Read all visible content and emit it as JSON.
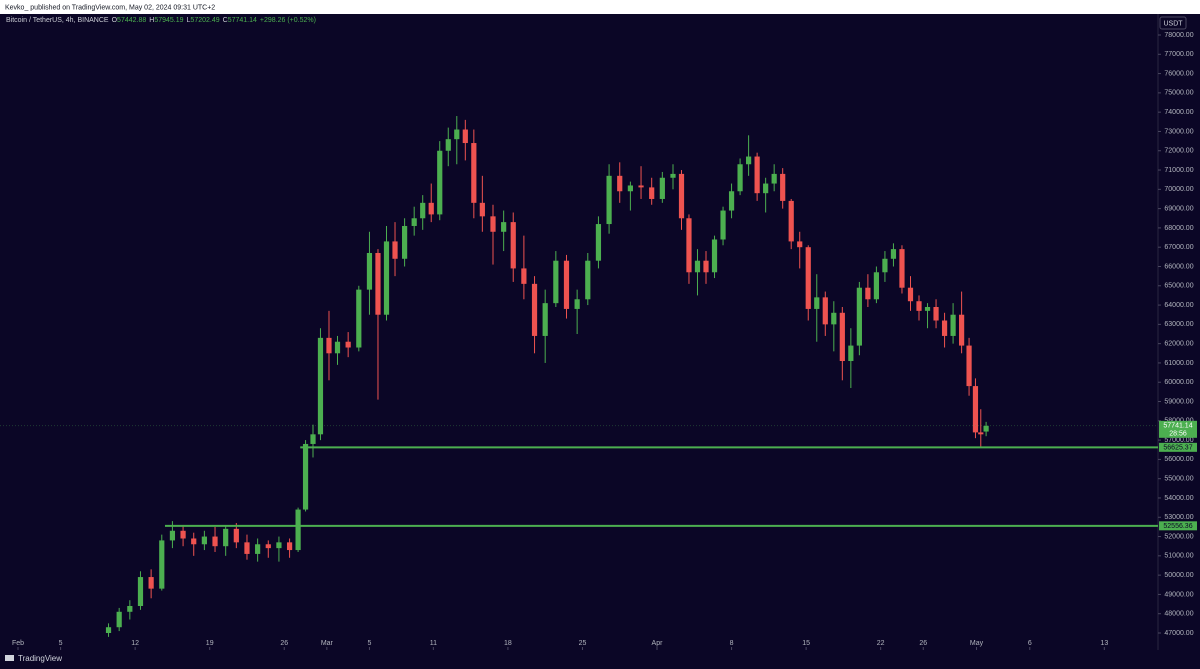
{
  "chart_data": {
    "type": "candlestick",
    "published_by": "Kevko_ published on TradingView.com, May 02, 2024 09:31 UTC+2",
    "symbol": "Bitcoin / TetherUS, 4h, BINANCE",
    "ohlc_labels": [
      "O",
      "H",
      "L",
      "C"
    ],
    "change_label": "+298.26 (+0.52%)",
    "currency": "USDT",
    "countdown": "28:56",
    "brand": "TradingView",
    "up_color": "#4caf50",
    "down_color": "#ef5350",
    "level_color": "#4caf50",
    "grid": false,
    "xlim": [
      -1.69,
      107.04
    ],
    "ylim": [
      46119,
      79089
    ],
    "xticks": [
      {
        "value": 0,
        "label": "Feb"
      },
      {
        "value": 4,
        "label": "5"
      },
      {
        "value": 11,
        "label": "12"
      },
      {
        "value": 18,
        "label": "19"
      },
      {
        "value": 25,
        "label": "26"
      },
      {
        "value": 29,
        "label": "Mar"
      },
      {
        "value": 33,
        "label": "5"
      },
      {
        "value": 39,
        "label": "11"
      },
      {
        "value": 46,
        "label": "18"
      },
      {
        "value": 53,
        "label": "25"
      },
      {
        "value": 60,
        "label": "Apr"
      },
      {
        "value": 67,
        "label": "8"
      },
      {
        "value": 74,
        "label": "15"
      },
      {
        "value": 81,
        "label": "22"
      },
      {
        "value": 85,
        "label": "26"
      },
      {
        "value": 90,
        "label": "May"
      },
      {
        "value": 95,
        "label": "6"
      },
      {
        "value": 102,
        "label": "13"
      }
    ],
    "yticks": [
      {
        "value": 47000,
        "label": "47000.00"
      },
      {
        "value": 48000,
        "label": "48000.00"
      },
      {
        "value": 49000,
        "label": "49000.00"
      },
      {
        "value": 50000,
        "label": "50000.00"
      },
      {
        "value": 51000,
        "label": "51000.00"
      },
      {
        "value": 52000,
        "label": "52000.00"
      },
      {
        "value": 53000,
        "label": "53000.00"
      },
      {
        "value": 54000,
        "label": "54000.00"
      },
      {
        "value": 55000,
        "label": "55000.00"
      },
      {
        "value": 56000,
        "label": "56000.00"
      },
      {
        "value": 57000,
        "label": "57000.00"
      },
      {
        "value": 58000,
        "label": "58000.00"
      },
      {
        "value": 59000,
        "label": "59000.00"
      },
      {
        "value": 60000,
        "label": "60000.00"
      },
      {
        "value": 61000,
        "label": "61000.00"
      },
      {
        "value": 62000,
        "label": "62000.00"
      },
      {
        "value": 63000,
        "label": "63000.00"
      },
      {
        "value": 64000,
        "label": "64000.00"
      },
      {
        "value": 65000,
        "label": "65000.00"
      },
      {
        "value": 66000,
        "label": "66000.00"
      },
      {
        "value": 67000,
        "label": "67000.00"
      },
      {
        "value": 68000,
        "label": "68000.00"
      },
      {
        "value": 69000,
        "label": "69000.00"
      },
      {
        "value": 70000,
        "label": "70000.00"
      },
      {
        "value": 71000,
        "label": "71000.00"
      },
      {
        "value": 72000,
        "label": "72000.00"
      },
      {
        "value": 73000,
        "label": "73000.00"
      },
      {
        "value": 74000,
        "label": "74000.00"
      },
      {
        "value": 75000,
        "label": "75000.00"
      },
      {
        "value": 76000,
        "label": "76000.00"
      },
      {
        "value": 77000,
        "label": "77000.00"
      },
      {
        "value": 78000,
        "label": "78000.00"
      }
    ],
    "x": [
      8.5,
      9.5,
      10.5,
      11.5,
      12.5,
      13.5,
      14.5,
      15.5,
      16.5,
      17.5,
      18.5,
      19.5,
      20.5,
      21.5,
      22.5,
      23.5,
      24.5,
      25.5,
      26.3,
      27.0,
      27.7,
      28.4,
      29.2,
      30.0,
      31.0,
      32.0,
      33.0,
      33.8,
      34.6,
      35.4,
      36.3,
      37.2,
      38.0,
      38.8,
      39.6,
      40.4,
      41.2,
      42.0,
      42.8,
      43.6,
      44.6,
      45.6,
      46.5,
      47.5,
      48.5,
      49.5,
      50.5,
      51.5,
      52.5,
      53.5,
      54.5,
      55.5,
      56.5,
      57.5,
      58.5,
      59.5,
      60.5,
      61.5,
      62.3,
      63.0,
      63.8,
      64.6,
      65.4,
      66.2,
      67.0,
      67.8,
      68.6,
      69.4,
      70.2,
      71.0,
      71.8,
      72.6,
      73.4,
      74.2,
      75.0,
      75.8,
      76.6,
      77.4,
      78.2,
      79.0,
      79.8,
      80.6,
      81.4,
      82.2,
      83.0,
      83.8,
      84.6,
      85.4,
      86.2,
      87.0,
      87.8,
      88.6,
      89.3,
      89.9,
      90.4,
      90.9
    ],
    "open": [
      47000,
      47300,
      48100,
      48400,
      49900,
      49300,
      51800,
      52300,
      51900,
      51600,
      52000,
      51500,
      52400,
      51700,
      51100,
      51600,
      51400,
      51700,
      51300,
      53400,
      56800,
      57300,
      62300,
      61500,
      62100,
      61800,
      64800,
      66700,
      63500,
      67300,
      66400,
      68100,
      68500,
      69300,
      68700,
      72000,
      72600,
      73100,
      72400,
      69300,
      68600,
      67800,
      68300,
      65900,
      65100,
      62400,
      64100,
      66300,
      63800,
      64300,
      66300,
      68200,
      70700,
      69900,
      70200,
      70100,
      69500,
      70600,
      70800,
      68500,
      65700,
      66300,
      65700,
      67400,
      68900,
      69900,
      71300,
      71700,
      69800,
      70300,
      70800,
      69400,
      67300,
      67000,
      63800,
      64400,
      63000,
      63600,
      61100,
      61900,
      64900,
      64300,
      65700,
      66400,
      66900,
      64900,
      64200,
      63700,
      63900,
      63200,
      62400,
      63500,
      61900,
      59800,
      57400,
      57442.88
    ],
    "high": [
      47500,
      48300,
      48700,
      50200,
      50300,
      52100,
      52800,
      52600,
      52200,
      52300,
      52500,
      52600,
      52700,
      52100,
      51900,
      51800,
      52000,
      51900,
      53500,
      57000,
      57800,
      62800,
      63700,
      62400,
      62600,
      65000,
      67800,
      66900,
      68100,
      68300,
      68500,
      69100,
      69700,
      70300,
      72500,
      73200,
      73800,
      73600,
      73100,
      70700,
      69200,
      68900,
      68800,
      67600,
      65500,
      64800,
      66800,
      66600,
      64800,
      66700,
      68600,
      71300,
      71400,
      70400,
      71200,
      70600,
      70900,
      71300,
      71000,
      68700,
      66900,
      66800,
      67600,
      69100,
      70300,
      71600,
      72800,
      71900,
      70600,
      71300,
      71100,
      69500,
      67800,
      67100,
      65600,
      64700,
      64200,
      63900,
      62800,
      65200,
      65600,
      66000,
      66800,
      67200,
      67100,
      65500,
      64500,
      64100,
      64300,
      63600,
      64100,
      64700,
      62300,
      60200,
      58600,
      57945.19
    ],
    "low": [
      46800,
      47100,
      47700,
      48200,
      48800,
      49200,
      51400,
      51500,
      51000,
      51300,
      51200,
      51000,
      51400,
      50800,
      50700,
      50900,
      50700,
      50900,
      51200,
      53300,
      56100,
      57000,
      60100,
      60900,
      61300,
      61600,
      63500,
      59100,
      63200,
      65500,
      66000,
      67600,
      67900,
      68300,
      68400,
      71200,
      71300,
      71500,
      68500,
      67800,
      66100,
      66800,
      65200,
      64300,
      61500,
      61000,
      63900,
      63300,
      62500,
      64000,
      65900,
      67700,
      69300,
      68900,
      69500,
      69200,
      69300,
      70000,
      67900,
      65100,
      64500,
      65100,
      65400,
      67100,
      68500,
      69700,
      70700,
      69400,
      68800,
      69900,
      69000,
      66900,
      65900,
      63200,
      62100,
      62400,
      61600,
      60100,
      59700,
      61400,
      63900,
      64100,
      65200,
      66000,
      64600,
      63700,
      63200,
      62800,
      62800,
      61800,
      62000,
      61500,
      59300,
      57100,
      56600,
      57202.49
    ],
    "close": [
      47300,
      48100,
      48400,
      49900,
      49300,
      51800,
      52300,
      51900,
      51600,
      52000,
      51500,
      52400,
      51700,
      51100,
      51600,
      51400,
      51700,
      51300,
      53400,
      56800,
      57300,
      62300,
      61500,
      62100,
      61800,
      64800,
      66700,
      63500,
      67300,
      66400,
      68100,
      68500,
      69300,
      68700,
      72000,
      72600,
      73100,
      72400,
      69300,
      68600,
      67800,
      68300,
      65900,
      65100,
      62400,
      64100,
      66300,
      63800,
      64300,
      66300,
      68200,
      70700,
      69900,
      70200,
      70100,
      69500,
      70600,
      70800,
      68500,
      65700,
      66300,
      65700,
      67400,
      68900,
      69900,
      71300,
      71700,
      69800,
      70300,
      70800,
      69400,
      67300,
      67000,
      63800,
      64400,
      63000,
      63600,
      61100,
      61900,
      64900,
      64300,
      65700,
      66400,
      66900,
      64900,
      64200,
      63700,
      63900,
      63200,
      62400,
      63500,
      61900,
      59800,
      57400,
      57300,
      57741.14
    ],
    "levels": [
      {
        "value": 56625.37,
        "x_start": 26.5
      },
      {
        "value": 52556.36,
        "x_start": 13.8
      }
    ]
  }
}
